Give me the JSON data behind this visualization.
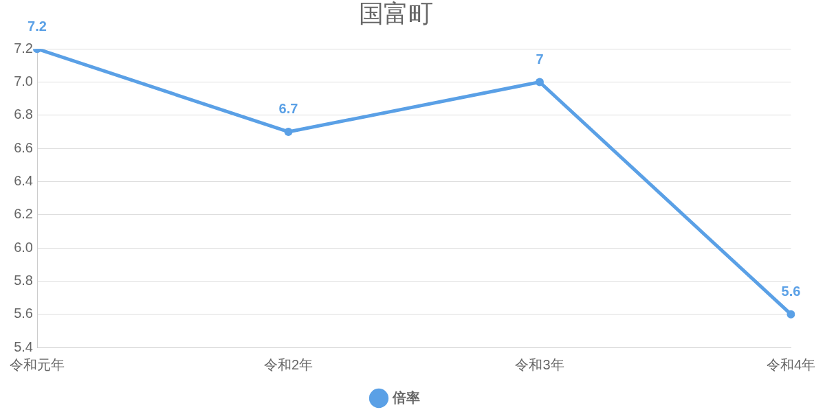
{
  "chart_data": {
    "type": "line",
    "title": "国富町",
    "categories": [
      "令和元年",
      "令和2年",
      "令和3年",
      "令和4年"
    ],
    "series": [
      {
        "name": "倍率",
        "color": "#5aa0e6",
        "values": [
          7.2,
          6.7,
          7,
          5.6
        ]
      }
    ],
    "ylim": [
      5.4,
      7.2
    ],
    "yticks": [
      5.4,
      5.6,
      5.8,
      {
        "value": 6.0,
        "label": "6.0"
      },
      6.2,
      6.4,
      6.6,
      6.8,
      {
        "value": 7.0,
        "label": "7.0"
      },
      7.2
    ],
    "grid": "y",
    "legend": "bottom",
    "marker": "circle",
    "line_style": "solid",
    "data_labels": true
  }
}
